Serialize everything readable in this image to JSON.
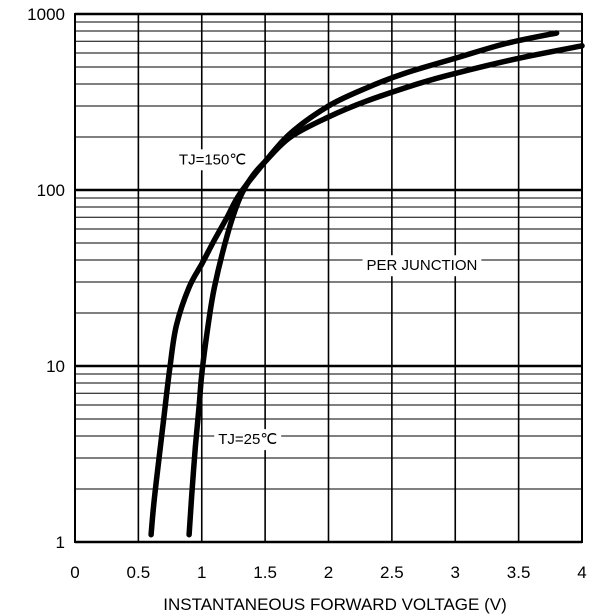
{
  "chart_data": {
    "type": "line",
    "xlabel": "INSTANTANEOUS FORWARD VOLTAGE (V)",
    "ylabel": "",
    "x_ticks": [
      "0",
      "0.5",
      "1",
      "1.5",
      "2",
      "2.5",
      "3",
      "3.5",
      "4"
    ],
    "y_ticks": [
      "1",
      "10",
      "100",
      "1000"
    ],
    "xlim": [
      0,
      4
    ],
    "ylim": [
      1,
      1000
    ],
    "y_scale": "log",
    "grid": true,
    "annotations": [
      {
        "id": "tj150",
        "text": "TJ=150℃",
        "x": 0.82,
        "y": 140
      },
      {
        "id": "tj25",
        "text": "TJ=25℃",
        "x": 1.13,
        "y": 3.6
      },
      {
        "id": "perjunction",
        "text": "PER JUNCTION",
        "x": 2.3,
        "y": 35
      }
    ],
    "series": [
      {
        "x": [
          0.6,
          0.62,
          0.65,
          0.7,
          0.75,
          0.8,
          0.9,
          1.0,
          1.1,
          1.2,
          1.3,
          1.5,
          1.7,
          2.0,
          2.3,
          2.6,
          3.0,
          3.4,
          3.8
        ],
        "y": [
          1.1,
          1.6,
          2.5,
          5,
          10,
          17,
          28,
          38,
          52,
          70,
          95,
          145,
          210,
          300,
          380,
          460,
          560,
          680,
          780
        ]
      },
      {
        "x": [
          0.9,
          0.92,
          0.95,
          0.98,
          1.0,
          1.05,
          1.1,
          1.2,
          1.3,
          1.4,
          1.5,
          1.7,
          2.0,
          2.3,
          2.7,
          3.0,
          3.5,
          4.0
        ],
        "y": [
          1.1,
          1.8,
          3.5,
          6,
          9,
          17,
          28,
          55,
          90,
          120,
          145,
          200,
          260,
          320,
          400,
          460,
          560,
          660
        ]
      }
    ]
  }
}
